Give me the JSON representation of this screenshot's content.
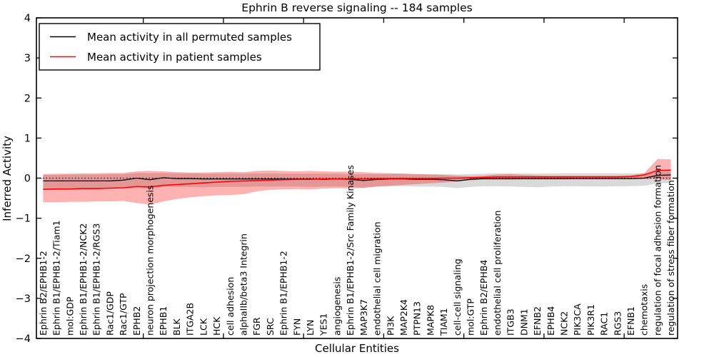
{
  "chart_data": {
    "type": "line",
    "title": "Ephrin B reverse signaling -- 184 samples",
    "xlabel": "Cellular Entities",
    "ylabel": "Inferred Activity",
    "ylim": [
      -4,
      4
    ],
    "yticks": [
      4,
      3,
      2,
      1,
      0,
      -1,
      -2,
      -3,
      -4
    ],
    "ytick_labels": [
      "4",
      "3",
      "2",
      "1",
      "0",
      "−1",
      "−2",
      "−3",
      "−4"
    ],
    "grid": false,
    "zero_line_style": "dotted",
    "legend_position": "upper left",
    "legend": [
      "Mean activity in all permuted samples",
      "Mean activity in patient samples"
    ],
    "colors": {
      "permuted_line": "#000000",
      "patient_line": "#ff0000",
      "permuted_band": "rgba(0,0,0,0.15)",
      "patient_band": "rgba(255,0,0,0.30)"
    },
    "top_tick_boundaries": [
      8,
      14,
      20,
      26,
      32,
      38,
      44
    ],
    "categories": [
      "Ephrin B2/EPHB1-2",
      "Ephrin B1/EPHB1-2/Tiam1",
      "mol:GDP",
      "Ephrin B1/EPHB1-2/NCK2",
      "Ephrin B1/EPHB1-2/RGS3",
      "Rac1/GDP",
      "Rac1/GTP",
      "EPHB2",
      "neuron projection morphogenesis",
      "EPHB1",
      "BLK",
      "ITGA2B",
      "LCK",
      "HCK",
      "cell adhesion",
      "alphaIIb/beta3 Integrin",
      "FGR",
      "SRC",
      "Ephrin B1/EPHB1-2",
      "FYN",
      "LYN",
      "YES1",
      "angiogenesis",
      "Ephrin B1/EPHB1-2/Src Family Kinases",
      "MAP3K7",
      "endothelial cell migration",
      "PI3K",
      "MAP2K4",
      "PTPN13",
      "MAPK8",
      "TIAM1",
      "cell-cell signaling",
      "mol:GTP",
      "Ephrin B2/EPHB4",
      "endothelial cell proliferation",
      "ITGB3",
      "DNM1",
      "EFNB2",
      "EPHB4",
      "NCK2",
      "PIK3CA",
      "PIK3R1",
      "RAC1",
      "RGS3",
      "EFNB1",
      "chemotaxis",
      "regulation of focal adhesion formation",
      "regulation of stress fiber formation"
    ],
    "series": [
      {
        "name": "Mean activity in all permuted samples",
        "color": "#000000",
        "band_color": "rgba(0,0,0,0.15)",
        "values": [
          -0.07,
          -0.07,
          -0.07,
          -0.07,
          -0.07,
          -0.07,
          -0.05,
          0.0,
          -0.04,
          0.01,
          -0.01,
          -0.01,
          -0.02,
          -0.02,
          -0.02,
          -0.02,
          -0.02,
          -0.02,
          -0.02,
          -0.02,
          -0.02,
          -0.03,
          -0.02,
          -0.03,
          -0.06,
          -0.03,
          -0.02,
          -0.02,
          -0.03,
          -0.03,
          -0.04,
          -0.07,
          -0.03,
          -0.01,
          -0.01,
          -0.01,
          -0.01,
          -0.01,
          -0.01,
          -0.01,
          -0.01,
          -0.01,
          -0.01,
          -0.01,
          -0.01,
          0.0,
          0.07,
          0.08
        ],
        "band_upper": [
          0.08,
          0.08,
          0.09,
          0.09,
          0.09,
          0.1,
          0.1,
          0.13,
          0.12,
          0.13,
          0.12,
          0.12,
          0.11,
          0.11,
          0.12,
          0.11,
          0.12,
          0.12,
          0.11,
          0.11,
          0.11,
          0.11,
          0.11,
          0.1,
          0.1,
          0.1,
          0.11,
          0.11,
          0.1,
          0.1,
          0.1,
          0.09,
          0.1,
          0.11,
          0.12,
          0.12,
          0.12,
          0.11,
          0.12,
          0.12,
          0.12,
          0.12,
          0.12,
          0.12,
          0.12,
          0.12,
          0.15,
          0.16
        ],
        "band_lower": [
          -0.26,
          -0.26,
          -0.25,
          -0.25,
          -0.25,
          -0.24,
          -0.24,
          -0.22,
          -0.26,
          -0.22,
          -0.22,
          -0.22,
          -0.23,
          -0.22,
          -0.22,
          -0.22,
          -0.21,
          -0.21,
          -0.21,
          -0.21,
          -0.22,
          -0.21,
          -0.21,
          -0.22,
          -0.24,
          -0.21,
          -0.2,
          -0.2,
          -0.21,
          -0.21,
          -0.22,
          -0.25,
          -0.22,
          -0.2,
          -0.2,
          -0.21,
          -0.22,
          -0.23,
          -0.21,
          -0.2,
          -0.2,
          -0.21,
          -0.21,
          -0.2,
          -0.2,
          -0.19,
          -0.13,
          -0.12
        ]
      },
      {
        "name": "Mean activity in patient samples",
        "color": "#ff0000",
        "band_color": "rgba(255,0,0,0.30)",
        "values": [
          -0.28,
          -0.27,
          -0.27,
          -0.26,
          -0.26,
          -0.25,
          -0.24,
          -0.21,
          -0.22,
          -0.18,
          -0.16,
          -0.14,
          -0.12,
          -0.1,
          -0.08,
          -0.07,
          -0.06,
          -0.05,
          -0.04,
          -0.03,
          -0.03,
          -0.02,
          -0.02,
          -0.02,
          -0.02,
          -0.01,
          -0.01,
          -0.01,
          -0.01,
          -0.01,
          0.0,
          0.0,
          0.01,
          0.02,
          0.03,
          0.03,
          0.03,
          0.03,
          0.03,
          0.03,
          0.03,
          0.03,
          0.03,
          0.03,
          0.04,
          0.08,
          0.19,
          0.2
        ],
        "band_upper": [
          0.1,
          0.11,
          0.11,
          0.12,
          0.12,
          0.13,
          0.13,
          0.17,
          0.18,
          0.17,
          0.15,
          0.14,
          0.14,
          0.15,
          0.16,
          0.15,
          0.18,
          0.19,
          0.18,
          0.17,
          0.18,
          0.17,
          0.16,
          0.16,
          0.15,
          0.13,
          0.12,
          0.11,
          0.1,
          0.09,
          0.08,
          0.06,
          0.05,
          0.06,
          0.09,
          0.1,
          0.08,
          0.07,
          0.06,
          0.06,
          0.06,
          0.06,
          0.06,
          0.06,
          0.07,
          0.12,
          0.48,
          0.47
        ],
        "band_lower": [
          -0.6,
          -0.6,
          -0.59,
          -0.59,
          -0.58,
          -0.58,
          -0.57,
          -0.62,
          -0.66,
          -0.58,
          -0.52,
          -0.48,
          -0.45,
          -0.43,
          -0.42,
          -0.4,
          -0.33,
          -0.29,
          -0.28,
          -0.27,
          -0.28,
          -0.26,
          -0.25,
          -0.26,
          -0.24,
          -0.21,
          -0.19,
          -0.17,
          -0.15,
          -0.13,
          -0.11,
          -0.08,
          -0.05,
          -0.04,
          -0.04,
          -0.04,
          -0.03,
          -0.03,
          -0.03,
          -0.03,
          -0.02,
          -0.02,
          -0.02,
          -0.02,
          -0.02,
          -0.02,
          -0.02,
          -0.05
        ]
      }
    ]
  }
}
